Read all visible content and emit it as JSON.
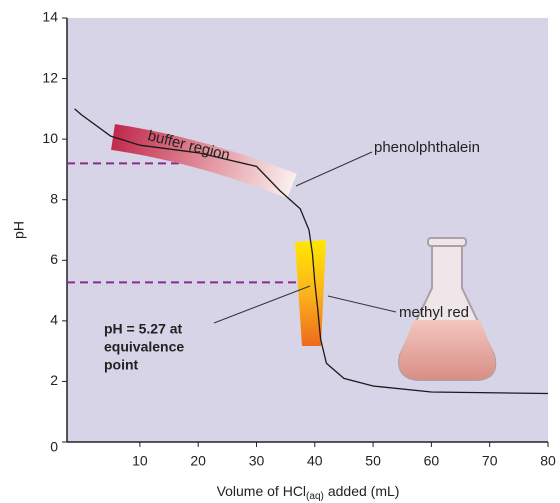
{
  "chart_data": {
    "type": "line",
    "x_label": {
      "text": "Volume of HCl",
      "subscript": "(aq)",
      "suffix": "added (mL)"
    },
    "y_label": "pH",
    "xlim": [
      -2.5,
      80
    ],
    "ylim": [
      0,
      14
    ],
    "xticks": [
      10,
      20,
      30,
      40,
      50,
      60,
      70,
      80
    ],
    "yticks": [
      0,
      2,
      4,
      6,
      8,
      10,
      12,
      14
    ],
    "background": "#d8d4e8",
    "series": [
      {
        "color": "#1a1a1a",
        "x": [
          -1.2,
          0,
          5,
          10,
          20,
          30,
          34,
          37.5,
          39,
          39.6,
          40,
          40.5,
          41,
          42,
          45,
          50,
          60,
          80
        ],
        "values": [
          11.0,
          10.8,
          10.1,
          9.8,
          9.55,
          9.1,
          8.3,
          7.7,
          7.0,
          6.2,
          5.27,
          4.4,
          3.4,
          2.6,
          2.1,
          1.85,
          1.65,
          1.6
        ]
      }
    ],
    "reference_lines": [
      {
        "y": 9.2,
        "x_end": 21
      },
      {
        "y": 5.27,
        "x_end": 40
      }
    ],
    "reference_color": "#8b2b8b",
    "annotations": {
      "buffer_region": "buffer region",
      "phenolphthalein": "phenolphthalein",
      "methyl_red": "methyl red",
      "equivalence": [
        "pH = 5.27 at",
        "equivalence",
        "point"
      ]
    }
  }
}
